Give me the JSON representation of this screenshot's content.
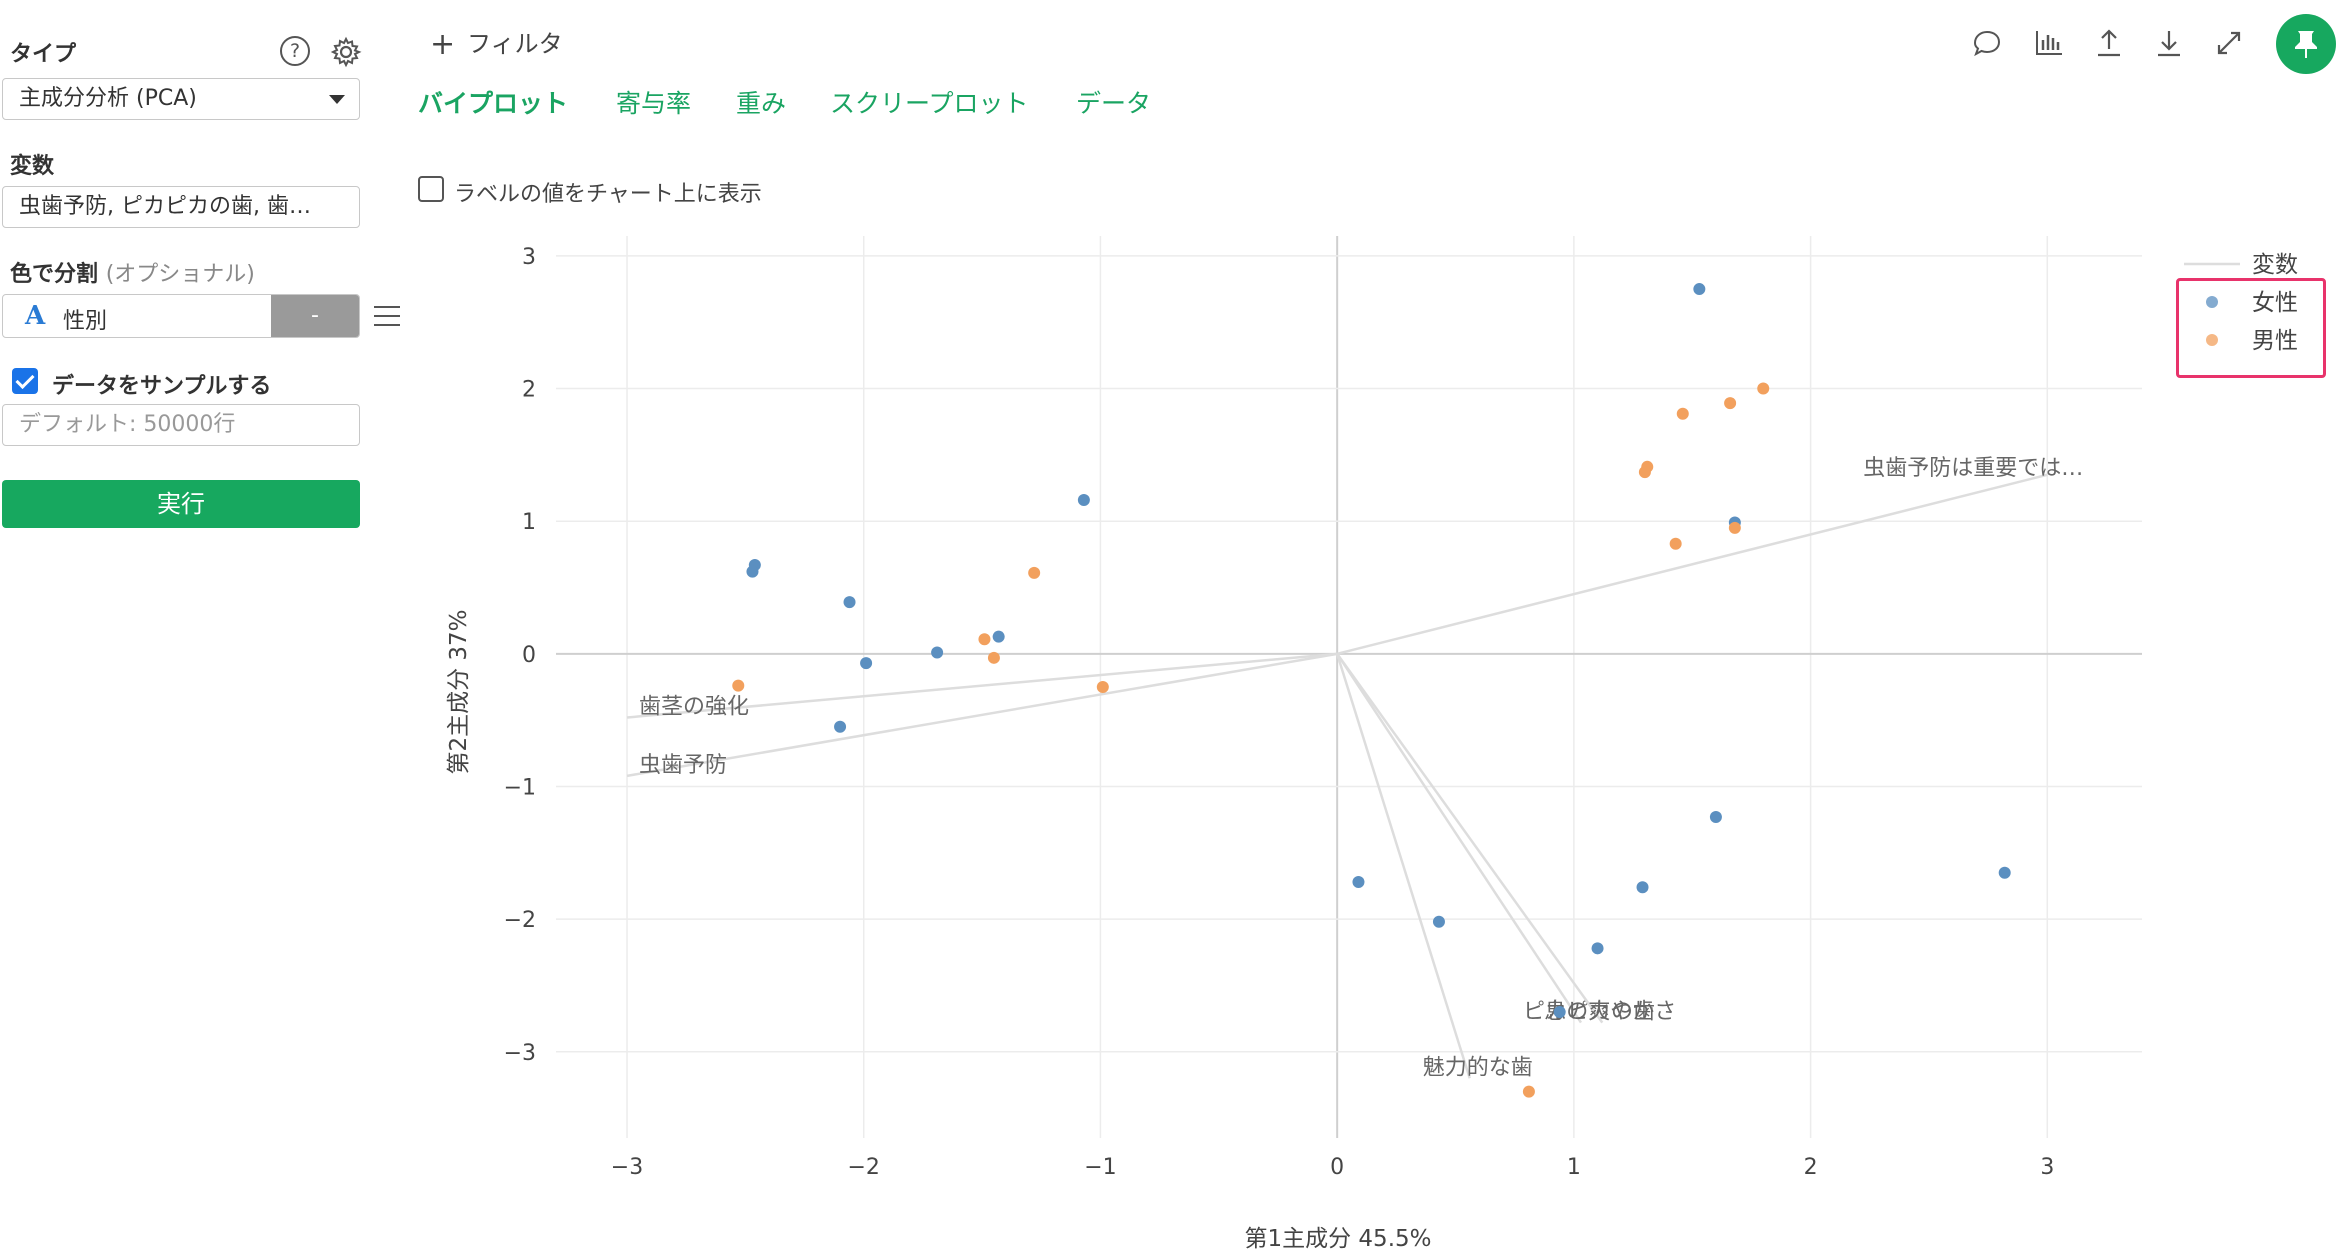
{
  "panel": {
    "type_label": "タイプ",
    "type_value": "主成分分析 (PCA)",
    "variables_label": "変数",
    "variables_value": "虫歯予防, ピカピカの歯, 歯…",
    "color_split_label": "色で分割",
    "color_split_optional": "(オプショナル)",
    "color_split_var": "性別",
    "color_split_var_type_glyph": "A",
    "color_split_clear": "-",
    "sample_checked": true,
    "sample_label": "データをサンプルする",
    "sample_placeholder": "デフォルト: 50000行",
    "run_label": "実行",
    "help_glyph": "?"
  },
  "topbar": {
    "filter_plus": "+",
    "filter_label": "フィルタ",
    "tabs": [
      {
        "label": "バイプロット",
        "active": true
      },
      {
        "label": "寄与率",
        "active": false
      },
      {
        "label": "重み",
        "active": false
      },
      {
        "label": "スクリープロット",
        "active": false
      },
      {
        "label": "データ",
        "active": false
      }
    ],
    "icons": [
      "comment-icon",
      "chart-icon",
      "upload-icon",
      "download-icon",
      "expand-icon",
      "pin-icon"
    ]
  },
  "label_toggle": {
    "checked": false,
    "label": "ラベルの値をチャート上に表示"
  },
  "chart_data": {
    "type": "scatter",
    "xlabel": "第1主成分 45.5%",
    "ylabel": "第2主成分 37%",
    "xlim": [
      -3.3,
      3.4
    ],
    "ylim": [
      -3.65,
      3.15
    ],
    "xticks": [
      -3,
      -2,
      -1,
      0,
      1,
      2,
      3
    ],
    "yticks": [
      -3,
      -2,
      -1,
      0,
      1,
      2,
      3
    ],
    "xtick_labels": [
      "−3",
      "−2",
      "−1",
      "0",
      "1",
      "2",
      "3"
    ],
    "ytick_labels": [
      "−3",
      "−2",
      "−1",
      "0",
      "1",
      "2",
      "3"
    ],
    "grid": true,
    "legend_title": "変数",
    "legend_position": "top-right",
    "series": [
      {
        "name": "女性",
        "color": "#5b8fc0",
        "points": [
          [
            1.53,
            2.75
          ],
          [
            1.68,
            0.99
          ],
          [
            -1.07,
            1.16
          ],
          [
            -2.46,
            0.67
          ],
          [
            -2.47,
            0.62
          ],
          [
            -2.06,
            0.39
          ],
          [
            -1.99,
            -0.07
          ],
          [
            -1.69,
            0.01
          ],
          [
            -1.43,
            0.13
          ],
          [
            -2.1,
            -0.55
          ],
          [
            0.09,
            -1.72
          ],
          [
            0.43,
            -2.02
          ],
          [
            1.1,
            -2.22
          ],
          [
            1.29,
            -1.76
          ],
          [
            1.6,
            -1.23
          ],
          [
            2.82,
            -1.65
          ],
          [
            0.94,
            -2.7
          ]
        ]
      },
      {
        "name": "男性",
        "color": "#f2a05d",
        "points": [
          [
            1.8,
            2.0
          ],
          [
            1.66,
            1.89
          ],
          [
            1.46,
            1.81
          ],
          [
            1.31,
            1.41
          ],
          [
            1.3,
            1.37
          ],
          [
            1.43,
            0.83
          ],
          [
            1.68,
            0.95
          ],
          [
            -1.28,
            0.61
          ],
          [
            -1.49,
            0.11
          ],
          [
            -1.45,
            -0.03
          ],
          [
            -2.53,
            -0.24
          ],
          [
            -0.99,
            -0.25
          ],
          [
            0.81,
            -3.3
          ]
        ]
      }
    ],
    "loadings": {
      "name": "変数",
      "color": "#dddddd",
      "vectors": [
        {
          "label": "虫歯予防は重要では…",
          "end": [
            3.0,
            1.35
          ]
        },
        {
          "label": "歯茎の強化",
          "end": [
            -3.0,
            -0.48
          ]
        },
        {
          "label": "虫歯予防",
          "end": [
            -3.0,
            -0.92
          ]
        },
        {
          "label": "魅力的な歯",
          "end": [
            0.56,
            -3.2
          ]
        },
        {
          "label": "ピカピカの歯",
          "end": [
            1.03,
            -2.78
          ]
        },
        {
          "label": "息の爽やかさ",
          "end": [
            1.12,
            -2.78
          ]
        }
      ]
    }
  }
}
